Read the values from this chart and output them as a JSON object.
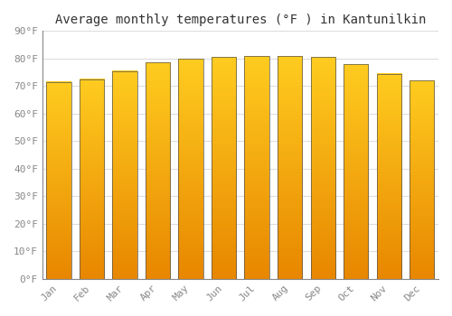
{
  "title": "Average monthly temperatures (°F ) in Kantunilkin",
  "months": [
    "Jan",
    "Feb",
    "Mar",
    "Apr",
    "May",
    "Jun",
    "Jul",
    "Aug",
    "Sep",
    "Oct",
    "Nov",
    "Dec"
  ],
  "values": [
    71.5,
    72.5,
    75.5,
    78.5,
    80.0,
    80.5,
    81.0,
    81.0,
    80.5,
    78.0,
    74.5,
    72.0
  ],
  "bar_color_top": "#FFB300",
  "bar_color_bottom": "#FF8C00",
  "bar_edge_color": "#555555",
  "background_color": "#FFFFFF",
  "grid_color": "#DDDDDD",
  "ylim": [
    0,
    90
  ],
  "yticks": [
    0,
    10,
    20,
    30,
    40,
    50,
    60,
    70,
    80,
    90
  ],
  "title_fontsize": 10,
  "tick_fontsize": 8,
  "font_family": "monospace",
  "bar_width": 0.75
}
